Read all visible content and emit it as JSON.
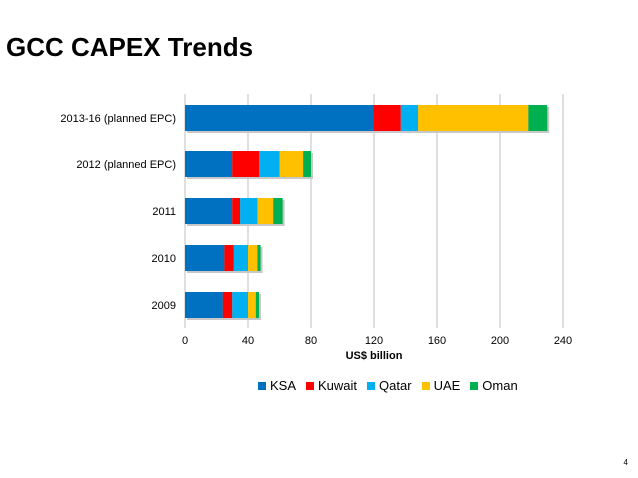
{
  "title": "GCC CAPEX Trends",
  "page_number": "4",
  "colors": {
    "KSA": "#0070C0",
    "Kuwait": "#FF0000",
    "Qatar": "#00B0F0",
    "UAE": "#FFC000",
    "Oman": "#00B050"
  },
  "chart_data": {
    "type": "bar",
    "orientation": "horizontal",
    "stacked": true,
    "categories": [
      "2013-16 (planned EPC)",
      "2012 (planned EPC)",
      "2011",
      "2010",
      "2009"
    ],
    "series": [
      {
        "name": "KSA",
        "values": [
          120,
          30,
          30,
          25,
          24
        ]
      },
      {
        "name": "Kuwait",
        "values": [
          17,
          17,
          5,
          6,
          6
        ]
      },
      {
        "name": "Qatar",
        "values": [
          11,
          13,
          11,
          9,
          10
        ]
      },
      {
        "name": "UAE",
        "values": [
          70,
          15,
          10,
          6,
          5
        ]
      },
      {
        "name": "Oman",
        "values": [
          12,
          5,
          6,
          2,
          2
        ]
      }
    ],
    "xlabel": "US$ billion",
    "ylabel": "",
    "xlim": [
      0,
      240
    ],
    "xticks": [
      "0",
      "40",
      "80",
      "120",
      "160",
      "200",
      "240"
    ],
    "grid": true,
    "legend_position": "bottom"
  }
}
